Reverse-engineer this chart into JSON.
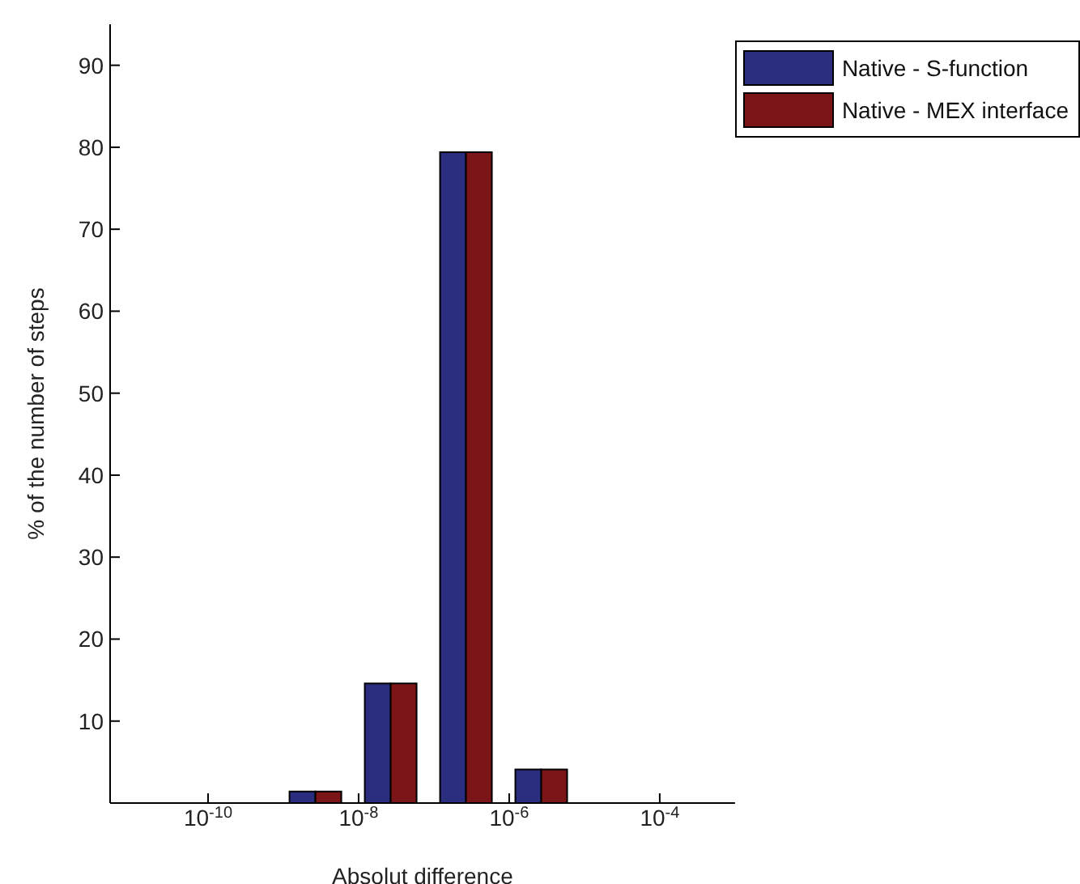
{
  "chart_data": {
    "type": "bar",
    "xlabel": "Absolut difference",
    "ylabel": "% of the number of steps",
    "log": "x",
    "x": [
      2.7e-09,
      2.7e-08,
      2.7e-07,
      2.7e-06
    ],
    "series": [
      {
        "name": "Native - S-function",
        "color": "#2b2d7e",
        "values": [
          1.4,
          14.6,
          79.4,
          4.1
        ]
      },
      {
        "name": "Native - MEX interface",
        "color": "#7c1517",
        "values": [
          1.4,
          14.6,
          79.4,
          4.1
        ]
      }
    ],
    "xlim": [
      5e-12,
      0.001
    ],
    "xticks": [
      {
        "value": 1e-10,
        "label": "10$^{-10}$"
      },
      {
        "value": 1e-08,
        "label": "10$^{-8}$"
      },
      {
        "value": 1e-06,
        "label": "10$^{-6}$"
      },
      {
        "value": 0.0001,
        "label": "10$^{-4}$"
      }
    ],
    "ylim": [
      0,
      95
    ],
    "yticks": [
      10,
      20,
      30,
      40,
      50,
      60,
      70,
      80,
      90
    ],
    "grid": false,
    "legend": "top right"
  }
}
